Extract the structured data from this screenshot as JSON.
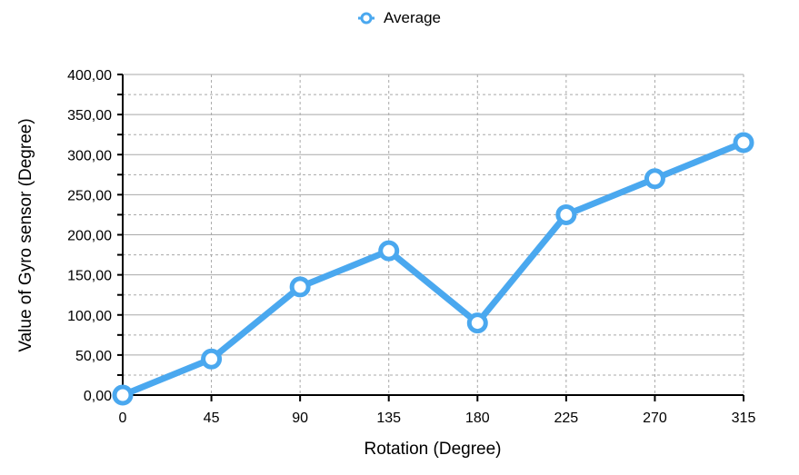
{
  "chart_data": {
    "type": "line",
    "xlabel": "Rotation (Degree)",
    "ylabel": "Value of Gyro sensor (Degree)",
    "x": [
      0,
      45,
      90,
      135,
      180,
      225,
      270,
      315
    ],
    "xticks": [
      "0",
      "45",
      "90",
      "135",
      "180",
      "225",
      "270",
      "315"
    ],
    "yticks": [
      "0,00",
      "50,00",
      "100,00",
      "150,00",
      "200,00",
      "250,00",
      "300,00",
      "350,00",
      "400,00"
    ],
    "ylim": [
      0,
      400
    ],
    "ytick_values": [
      0,
      50,
      100,
      150,
      200,
      250,
      300,
      350,
      400
    ],
    "series": [
      {
        "name": "Average",
        "values": [
          0,
          45,
          135,
          180,
          90,
          225,
          270,
          315
        ]
      }
    ],
    "legend_position": "top-center",
    "grid": true,
    "colors": {
      "series": "#4aa8ef",
      "grid": "#a8a8a8",
      "axis": "#000000"
    }
  }
}
